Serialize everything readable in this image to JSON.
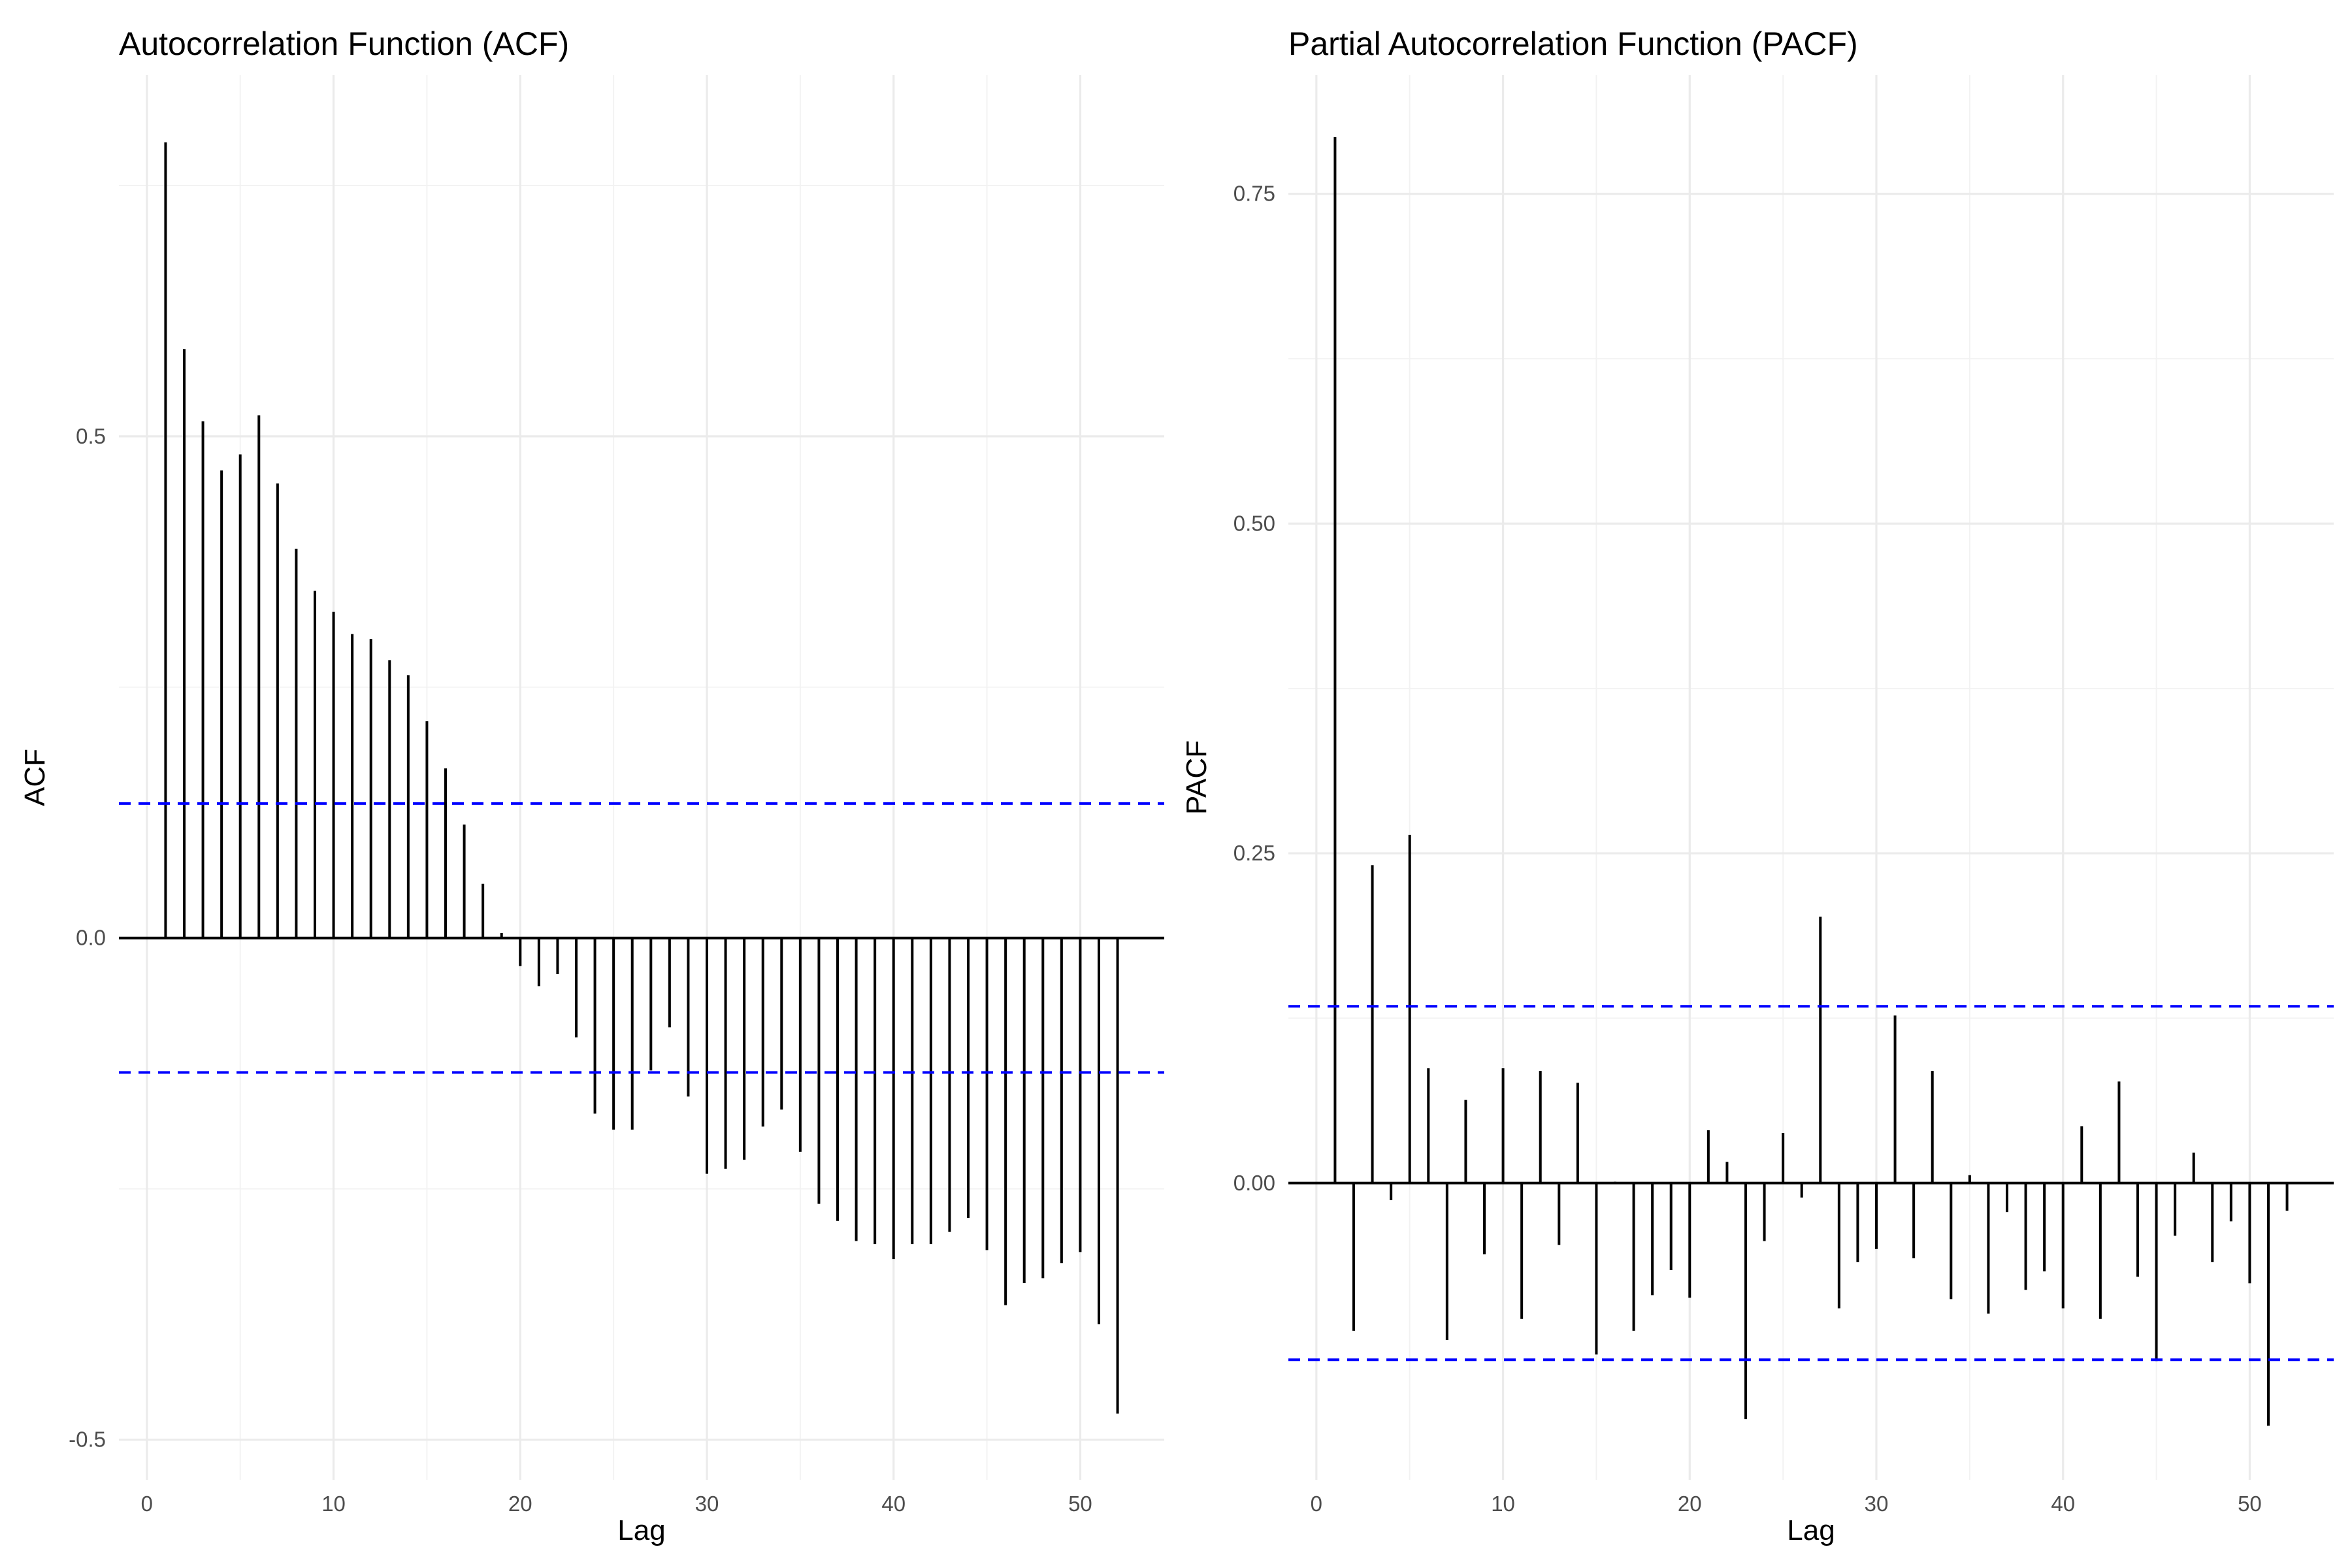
{
  "chart_data": [
    {
      "type": "bar",
      "title": "Autocorrelation Function (ACF)",
      "xlabel": "Lag",
      "ylabel": "ACF",
      "xlim": [
        -1.5,
        54.5
      ],
      "ylim": [
        -0.54,
        0.86
      ],
      "x_ticks": [
        0,
        10,
        20,
        30,
        40,
        50
      ],
      "x_tick_labels": [
        "0",
        "10",
        "20",
        "30",
        "40",
        "50"
      ],
      "y_ticks": [
        -0.5,
        0.0,
        0.5
      ],
      "y_tick_labels": [
        "-0.5",
        "0.0",
        "0.5"
      ],
      "y_minor_ticks": [
        -0.25,
        0.25,
        0.75
      ],
      "confidence_bound": 0.134,
      "bound_color": "#0000ff",
      "bar_color": "#000000",
      "grid": true,
      "series": [
        {
          "x": [
            1,
            2,
            3,
            4,
            5,
            6,
            7,
            8,
            9,
            10,
            11,
            12,
            13,
            14,
            15,
            16,
            17,
            18,
            19,
            20,
            21,
            22,
            23,
            24,
            25,
            26,
            27,
            28,
            29,
            30,
            31,
            32,
            33,
            34,
            35,
            36,
            37,
            38,
            39,
            40,
            41,
            42,
            43,
            44,
            45,
            46,
            47,
            48,
            49,
            50,
            51,
            52
          ],
          "values": [
            0.793,
            0.587,
            0.515,
            0.466,
            0.482,
            0.521,
            0.453,
            0.388,
            0.346,
            0.325,
            0.303,
            0.298,
            0.277,
            0.262,
            0.216,
            0.169,
            0.113,
            0.054,
            0.005,
            -0.028,
            -0.048,
            -0.036,
            -0.099,
            -0.175,
            -0.191,
            -0.191,
            -0.132,
            -0.089,
            -0.158,
            -0.235,
            -0.23,
            -0.221,
            -0.188,
            -0.171,
            -0.213,
            -0.265,
            -0.282,
            -0.302,
            -0.305,
            -0.32,
            -0.305,
            -0.305,
            -0.293,
            -0.279,
            -0.311,
            -0.366,
            -0.344,
            -0.339,
            -0.324,
            -0.313,
            -0.385,
            -0.474
          ]
        }
      ]
    },
    {
      "type": "bar",
      "title": "Partial Autocorrelation Function (PACF)",
      "xlabel": "Lag",
      "ylabel": "PACF",
      "xlim": [
        -1.5,
        54.5
      ],
      "ylim": [
        -0.225,
        0.84
      ],
      "x_ticks": [
        0,
        10,
        20,
        30,
        40,
        50
      ],
      "x_tick_labels": [
        "0",
        "10",
        "20",
        "30",
        "40",
        "50"
      ],
      "y_ticks": [
        0.0,
        0.25,
        0.5,
        0.75
      ],
      "y_tick_labels": [
        "0.00",
        "0.25",
        "0.50",
        "0.75"
      ],
      "y_minor_ticks": [
        0.125,
        0.375,
        0.625
      ],
      "confidence_bound": 0.134,
      "bound_color": "#0000ff",
      "bar_color": "#000000",
      "grid": true,
      "series": [
        {
          "x": [
            1,
            2,
            3,
            4,
            5,
            6,
            7,
            8,
            9,
            10,
            11,
            12,
            13,
            14,
            15,
            16,
            17,
            18,
            19,
            20,
            21,
            22,
            23,
            24,
            25,
            26,
            27,
            28,
            29,
            30,
            31,
            32,
            33,
            34,
            35,
            36,
            37,
            38,
            39,
            40,
            41,
            42,
            43,
            44,
            45,
            46,
            47,
            48,
            49,
            50,
            51,
            52
          ],
          "values": [
            0.793,
            -0.112,
            0.241,
            -0.013,
            0.264,
            0.087,
            -0.119,
            0.063,
            -0.054,
            0.087,
            -0.103,
            0.085,
            -0.047,
            0.076,
            -0.13,
            0.001,
            -0.112,
            -0.085,
            -0.066,
            -0.087,
            0.04,
            0.016,
            -0.179,
            -0.044,
            0.038,
            -0.011,
            0.202,
            -0.095,
            -0.06,
            -0.05,
            0.127,
            -0.057,
            0.085,
            -0.088,
            0.006,
            -0.099,
            -0.022,
            -0.081,
            -0.067,
            -0.095,
            0.043,
            -0.103,
            0.077,
            -0.071,
            -0.135,
            -0.04,
            0.023,
            -0.06,
            -0.029,
            -0.076,
            -0.184,
            -0.021
          ]
        }
      ]
    }
  ]
}
